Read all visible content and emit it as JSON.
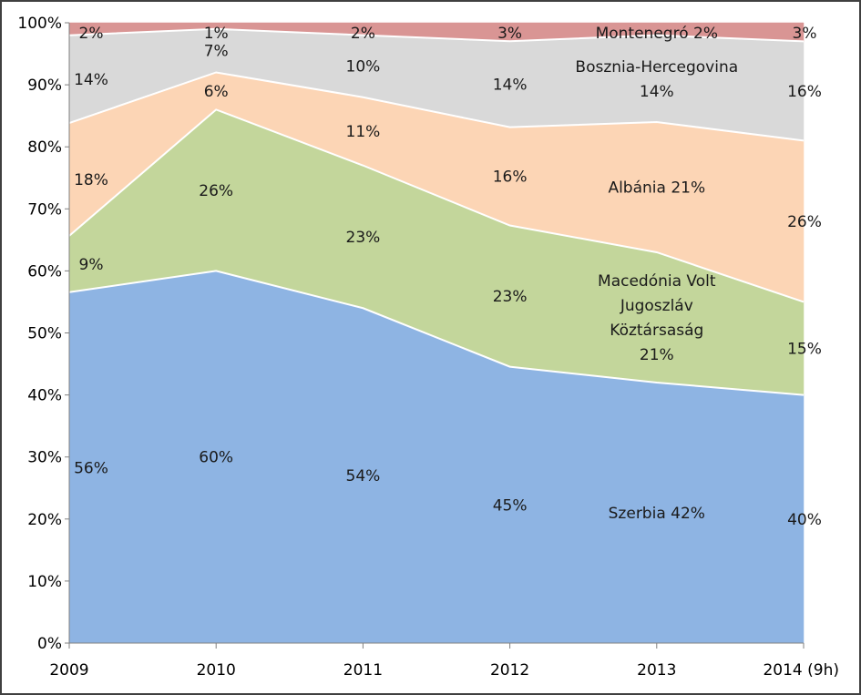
{
  "chart_data": {
    "type": "area",
    "stacked": "percent",
    "categories": [
      "2009",
      "2010",
      "2011",
      "2012",
      "2013",
      "2014 (9h)"
    ],
    "ylim": [
      0,
      100
    ],
    "yticks": [
      "0%",
      "10%",
      "20%",
      "30%",
      "40%",
      "50%",
      "60%",
      "70%",
      "80%",
      "90%",
      "100%"
    ],
    "series": [
      {
        "name": "Szerbia",
        "color": "#8eb4e3",
        "values": [
          56,
          60,
          54,
          45,
          42,
          40
        ],
        "labels": [
          "56%",
          "60%",
          "54%",
          "45%",
          [
            "Szerbia 42%"
          ],
          "40%"
        ]
      },
      {
        "name": "Macedónia Volt Jugoszláv Köztársaság",
        "color": "#c3d69b",
        "values": [
          9,
          26,
          23,
          23,
          21,
          15
        ],
        "labels": [
          "9%",
          "26%",
          "23%",
          "23%",
          [
            "Macedónia Volt",
            "Jugoszláv",
            "Köztársaság",
            "21%"
          ],
          "15%"
        ]
      },
      {
        "name": "Albánia",
        "color": "#fcd5b5",
        "values": [
          18,
          6,
          11,
          16,
          21,
          26
        ],
        "labels": [
          "18%",
          "6%",
          "11%",
          "16%",
          [
            "Albánia 21%"
          ],
          "26%"
        ]
      },
      {
        "name": "Bosznia-Hercegovina",
        "color": "#d9d9d9",
        "values": [
          14,
          7,
          10,
          14,
          14,
          16
        ],
        "labels": [
          "14%",
          "7%",
          "10%",
          "14%",
          [
            "Bosznia-Hercegovina",
            "14%"
          ],
          "16%"
        ]
      },
      {
        "name": "Montenegró",
        "color": "#d99594",
        "values": [
          2,
          1,
          2,
          3,
          2,
          3
        ],
        "labels": [
          "2%",
          "1%",
          "2%",
          "3%",
          [
            "Montenegró 2%"
          ],
          "3%"
        ]
      }
    ]
  }
}
